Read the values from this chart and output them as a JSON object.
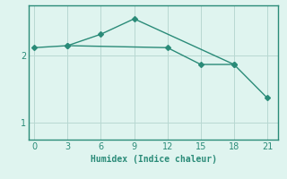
{
  "line1_x": [
    0,
    3,
    12,
    15,
    18,
    21
  ],
  "line1_y": [
    2.12,
    2.15,
    2.12,
    1.87,
    1.87,
    1.37
  ],
  "line2_x": [
    3,
    6,
    9,
    18
  ],
  "line2_y": [
    2.15,
    2.32,
    2.55,
    1.87
  ],
  "line_color": "#2a8b78",
  "bg_color": "#dff4ef",
  "grid_color_major": "#b8d8d2",
  "grid_color_minor": "#cce8e2",
  "xlabel": "Humidex (Indice chaleur)",
  "xticks": [
    0,
    3,
    6,
    9,
    12,
    15,
    18,
    21
  ],
  "yticks": [
    1,
    2
  ],
  "xlim": [
    -0.5,
    22
  ],
  "ylim": [
    0.75,
    2.75
  ],
  "marker": "D",
  "markersize": 3
}
